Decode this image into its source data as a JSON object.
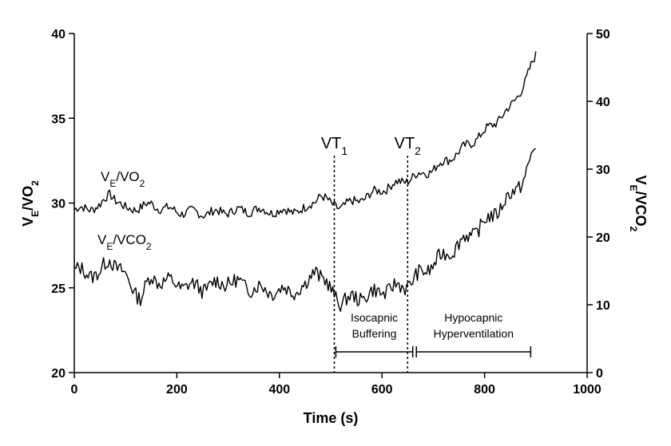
{
  "chart_data": {
    "type": "line",
    "xlabel": "Time (s)",
    "ylabel_left": {
      "main": "V",
      "sub": "E",
      "rest": "/VO",
      "sub2": "2"
    },
    "ylabel_right": {
      "main": "V",
      "sub": "E",
      "rest": "/VCO",
      "sub2": "2"
    },
    "xlim": [
      0,
      1000
    ],
    "ylim_left": [
      20,
      40
    ],
    "ylim_right": [
      0,
      50
    ],
    "x_ticks": [
      "0",
      "200",
      "400",
      "600",
      "800",
      "1000"
    ],
    "y_left_ticks": [
      "20",
      "25",
      "30",
      "35",
      "40"
    ],
    "y_right_ticks": [
      "0",
      "10",
      "20",
      "30",
      "40",
      "50"
    ],
    "grid": false,
    "series": [
      {
        "name": "VE/VO2",
        "label": {
          "main": "V",
          "sub": "E",
          "rest": "/VO",
          "sub2": "2"
        },
        "axis": "left",
        "x": [
          0,
          50,
          70,
          100,
          150,
          200,
          250,
          300,
          350,
          400,
          450,
          480,
          500,
          520,
          550,
          600,
          650,
          700,
          750,
          800,
          850,
          880,
          900
        ],
        "values": [
          29.6,
          29.8,
          30.6,
          29.6,
          29.9,
          29.5,
          29.4,
          29.5,
          29.6,
          29.5,
          29.6,
          30.5,
          29.9,
          29.8,
          30.1,
          30.8,
          31.4,
          32.0,
          33.0,
          34.2,
          35.6,
          37.2,
          38.7
        ]
      },
      {
        "name": "VE/VCO2",
        "label": {
          "main": "V",
          "sub": "E",
          "rest": "/VCO",
          "sub2": "2"
        },
        "axis": "right",
        "x": [
          0,
          50,
          70,
          100,
          130,
          150,
          200,
          250,
          300,
          350,
          400,
          450,
          470,
          500,
          520,
          550,
          600,
          650,
          700,
          750,
          800,
          850,
          880,
          900
        ],
        "values": [
          15.0,
          14.5,
          17.0,
          14.0,
          11.0,
          14.0,
          13.0,
          12.5,
          13.5,
          12.5,
          12.0,
          12.5,
          15.5,
          12.0,
          10.5,
          11.0,
          12.0,
          13.0,
          16.0,
          19.0,
          22.0,
          26.0,
          29.0,
          33.5
        ]
      }
    ],
    "markers": [
      {
        "label_main": "VT",
        "label_sub": "1",
        "x": 507
      },
      {
        "label_main": "VT",
        "label_sub": "2",
        "x": 650
      }
    ],
    "phases": [
      {
        "lines": [
          "Isocapnic",
          "Buffering"
        ],
        "x_start": 510,
        "x_end": 660
      },
      {
        "lines": [
          "Hypocapnic",
          "Hyperventilation"
        ],
        "x_start": 667,
        "x_end": 890
      }
    ]
  }
}
